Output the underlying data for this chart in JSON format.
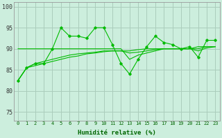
{
  "xlabel": "Humidité relative (%)",
  "background_color": "#cceedd",
  "grid_color": "#aaccbb",
  "line_color": "#00bb00",
  "xlim": [
    -0.5,
    23.5
  ],
  "ylim": [
    73,
    101
  ],
  "yticks": [
    75,
    80,
    85,
    90,
    95,
    100
  ],
  "xticks": [
    0,
    1,
    2,
    3,
    4,
    5,
    6,
    7,
    8,
    9,
    10,
    11,
    12,
    13,
    14,
    15,
    16,
    17,
    18,
    19,
    20,
    21,
    22,
    23
  ],
  "series1": [
    82.5,
    85.5,
    86.5,
    86.5,
    90.0,
    95.0,
    93.0,
    93.0,
    92.5,
    95.0,
    95.0,
    91.0,
    86.5,
    84.0,
    87.5,
    90.5,
    93.0,
    91.5,
    91.0,
    90.0,
    90.5,
    88.0,
    92.0,
    92.0
  ],
  "series2": [
    90.0,
    90.0,
    90.0,
    90.0,
    90.0,
    90.0,
    90.0,
    90.0,
    90.0,
    90.0,
    90.0,
    90.0,
    90.0,
    87.5,
    88.5,
    89.0,
    89.5,
    90.0,
    90.0,
    90.0,
    90.0,
    90.5,
    90.5,
    90.5
  ],
  "series3": [
    82.5,
    85.5,
    86.0,
    86.5,
    87.0,
    87.5,
    88.0,
    88.3,
    88.8,
    89.0,
    89.3,
    89.5,
    89.5,
    89.0,
    89.2,
    89.5,
    89.8,
    90.0,
    90.0,
    90.0,
    90.0,
    89.5,
    90.2,
    90.5
  ],
  "series4": [
    82.5,
    85.5,
    86.5,
    87.0,
    87.5,
    88.0,
    88.5,
    88.8,
    89.0,
    89.2,
    89.5,
    89.5,
    89.5,
    89.5,
    89.8,
    90.0,
    90.0,
    90.0,
    90.0,
    90.0,
    90.0,
    90.0,
    90.5,
    90.5
  ]
}
